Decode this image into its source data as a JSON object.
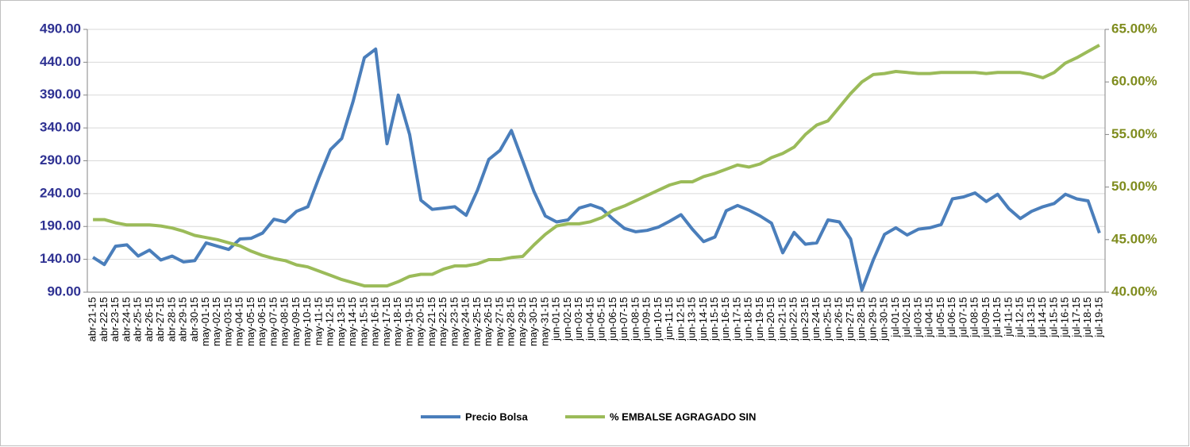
{
  "chart_data": {
    "type": "line",
    "categories": [
      "abr-21-15",
      "abr-22-15",
      "abr-23-15",
      "abr-24-15",
      "abr-25-15",
      "abr-26-15",
      "abr-27-15",
      "abr-28-15",
      "abr-29-15",
      "abr-30-15",
      "may-01-15",
      "may-02-15",
      "may-03-15",
      "may-04-15",
      "may-05-15",
      "may-06-15",
      "may-07-15",
      "may-08-15",
      "may-09-15",
      "may-10-15",
      "may-11-15",
      "may-12-15",
      "may-13-15",
      "may-14-15",
      "may-15-15",
      "may-16-15",
      "may-17-15",
      "may-18-15",
      "may-19-15",
      "may-20-15",
      "may-21-15",
      "may-22-15",
      "may-23-15",
      "may-24-15",
      "may-25-15",
      "may-26-15",
      "may-27-15",
      "may-28-15",
      "may-29-15",
      "may-30-15",
      "may-31-15",
      "jun-01-15",
      "jun-02-15",
      "jun-03-15",
      "jun-04-15",
      "jun-05-15",
      "jun-06-15",
      "jun-07-15",
      "jun-08-15",
      "jun-09-15",
      "jun-10-15",
      "jun-11-15",
      "jun-12-15",
      "jun-13-15",
      "jun-14-15",
      "jun-15-15",
      "jun-16-15",
      "jun-17-15",
      "jun-18-15",
      "jun-19-15",
      "jun-20-15",
      "jun-21-15",
      "jun-22-15",
      "jun-23-15",
      "jun-24-15",
      "jun-25-15",
      "jun-26-15",
      "jun-27-15",
      "jun-28-15",
      "jun-29-15",
      "jun-30-15",
      "jul-01-15",
      "jul-02-15",
      "jul-03-15",
      "jul-04-15",
      "jul-05-15",
      "jul-06-15",
      "jul-07-15",
      "jul-08-15",
      "jul-09-15",
      "jul-10-15",
      "jul-11-15",
      "jul-12-15",
      "jul-13-15",
      "jul-14-15",
      "jul-15-15",
      "jul-16-15",
      "jul-17-15",
      "jul-18-15",
      "jul-19-15"
    ],
    "series": [
      {
        "name": "Precio Bolsa",
        "color": "#4a7ebb",
        "values": [
          143,
          132,
          160,
          162,
          145,
          154,
          139,
          145,
          136,
          138,
          165,
          160,
          155,
          171,
          172,
          180,
          201,
          197,
          213,
          220,
          265,
          307,
          324,
          380,
          447,
          460,
          316,
          390,
          330,
          230,
          216,
          218,
          220,
          207,
          245,
          292,
          306,
          336,
          290,
          243,
          206,
          197,
          200,
          218,
          223,
          217,
          201,
          187,
          182,
          184,
          189,
          198,
          208,
          186,
          167,
          174,
          214,
          222,
          215,
          206,
          195,
          150,
          181,
          163,
          165,
          200,
          197,
          171,
          93,
          139,
          178,
          188,
          177,
          186,
          188,
          193,
          232,
          235,
          241,
          228,
          239,
          217,
          202,
          213,
          220,
          225,
          239,
          232,
          229,
          180
        ]
      },
      {
        "name": "% EMBALSE AGRAGADO SIN",
        "color": "#9bbb59",
        "axis": "y2",
        "values": [
          46.9,
          46.9,
          46.6,
          46.4,
          46.4,
          46.4,
          46.3,
          46.1,
          45.8,
          45.4,
          45.2,
          45.0,
          44.7,
          44.4,
          43.9,
          43.5,
          43.2,
          43.0,
          42.6,
          42.4,
          42.0,
          41.6,
          41.2,
          40.9,
          40.6,
          40.6,
          40.6,
          41.0,
          41.5,
          41.7,
          41.7,
          42.2,
          42.5,
          42.5,
          42.7,
          43.1,
          43.1,
          43.3,
          43.4,
          44.5,
          45.5,
          46.3,
          46.5,
          46.5,
          46.7,
          47.1,
          47.8,
          48.2,
          48.7,
          49.2,
          49.7,
          50.2,
          50.5,
          50.5,
          51.0,
          51.3,
          51.7,
          52.1,
          51.9,
          52.2,
          52.8,
          53.2,
          53.8,
          55.0,
          55.9,
          56.3,
          57.6,
          58.9,
          60.0,
          60.7,
          60.8,
          61.0,
          60.9,
          60.8,
          60.8,
          60.9,
          60.9,
          60.9,
          60.9,
          60.8,
          60.9,
          60.9,
          60.9,
          60.7,
          60.4,
          60.9,
          61.8,
          62.3,
          62.9,
          63.5
        ]
      }
    ],
    "ylim": [
      90,
      490
    ],
    "yticks": [
      {
        "value": 90,
        "label": "90.00"
      },
      {
        "value": 140,
        "label": "140.00"
      },
      {
        "value": 190,
        "label": "190.00"
      },
      {
        "value": 240,
        "label": "240.00"
      },
      {
        "value": 290,
        "label": "290.00"
      },
      {
        "value": 340,
        "label": "340.00"
      },
      {
        "value": 390,
        "label": "390.00"
      },
      {
        "value": 440,
        "label": "440.00"
      },
      {
        "value": 490,
        "label": "490.00"
      }
    ],
    "y2lim": [
      40,
      65
    ],
    "y2ticks": [
      {
        "value": 40,
        "label": "40.00%"
      },
      {
        "value": 45,
        "label": "45.00%"
      },
      {
        "value": 50,
        "label": "50.00%"
      },
      {
        "value": 55,
        "label": "55.00%"
      },
      {
        "value": 60,
        "label": "60.00%"
      },
      {
        "value": 65,
        "label": "65.00%"
      }
    ],
    "grid": true,
    "legend": "bottom"
  }
}
